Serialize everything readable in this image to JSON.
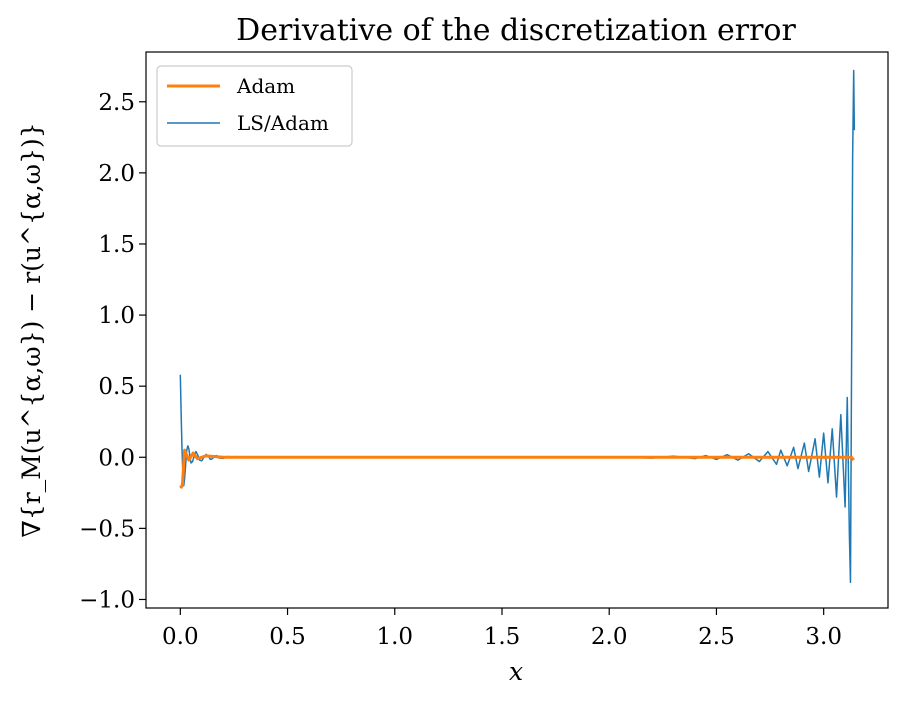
{
  "chart_data": {
    "type": "line",
    "title": "Derivative of the discretization error",
    "xlabel": "x",
    "ylabel": "∇{r_M(u^{α,ω}) − r(u^{α,ω})}",
    "xlim": [
      -0.16,
      3.3
    ],
    "ylim": [
      -1.06,
      2.85
    ],
    "xticks": [
      0.0,
      0.5,
      1.0,
      1.5,
      2.0,
      2.5,
      3.0
    ],
    "xtick_labels": [
      "0.0",
      "0.5",
      "1.0",
      "1.5",
      "2.0",
      "2.5",
      "3.0"
    ],
    "yticks": [
      -1.0,
      -0.5,
      0.0,
      0.5,
      1.0,
      1.5,
      2.0,
      2.5
    ],
    "ytick_labels": [
      "−1.0",
      "−0.5",
      "0.0",
      "0.5",
      "1.0",
      "1.5",
      "2.0",
      "2.5"
    ],
    "grid": false,
    "legend": {
      "placement": "top-left"
    },
    "series": [
      {
        "name": "Adam",
        "color": "#ff7f0e",
        "line_width": 3,
        "x": [
          0.0,
          0.005,
          0.01,
          0.02,
          0.04,
          0.06,
          0.08,
          0.12,
          0.2,
          0.5,
          1.0,
          1.5,
          2.0,
          2.5,
          2.8,
          3.0,
          3.1,
          3.13,
          3.14
        ],
        "y": [
          -0.2,
          -0.21,
          -0.19,
          0.05,
          -0.02,
          0.03,
          -0.01,
          0.01,
          0.0,
          0.0,
          0.0,
          0.0,
          0.0,
          0.0,
          0.0,
          0.0,
          0.0,
          0.0,
          -0.02
        ]
      },
      {
        "name": "LS/Adam",
        "color": "#1f77b4",
        "line_width": 1.5,
        "x": [
          0.0,
          0.004,
          0.008,
          0.012,
          0.016,
          0.02,
          0.025,
          0.03,
          0.035,
          0.04,
          0.045,
          0.05,
          0.057,
          0.065,
          0.073,
          0.08,
          0.09,
          0.1,
          0.11,
          0.12,
          0.13,
          0.14,
          0.15,
          0.16,
          0.17,
          0.18,
          0.2,
          0.22,
          0.24,
          0.26,
          0.3,
          0.4,
          0.6,
          0.8,
          1.0,
          1.2,
          1.4,
          1.6,
          1.8,
          2.0,
          2.2,
          2.3,
          2.4,
          2.45,
          2.5,
          2.55,
          2.6,
          2.65,
          2.7,
          2.74,
          2.78,
          2.8,
          2.83,
          2.86,
          2.88,
          2.91,
          2.93,
          2.96,
          2.98,
          3.0,
          3.02,
          3.04,
          3.06,
          3.08,
          3.1,
          3.11,
          3.12,
          3.125,
          3.13,
          3.135,
          3.14,
          3.143
        ],
        "y": [
          0.58,
          0.3,
          0.05,
          -0.12,
          -0.2,
          -0.15,
          -0.05,
          0.05,
          0.08,
          0.06,
          0.0,
          -0.04,
          -0.03,
          0.01,
          0.04,
          0.02,
          -0.02,
          -0.025,
          0.0,
          0.02,
          0.01,
          -0.015,
          -0.01,
          0.01,
          0.012,
          -0.005,
          -0.008,
          0.006,
          -0.005,
          0.005,
          -0.004,
          0.004,
          -0.003,
          0.003,
          -0.003,
          0.003,
          -0.003,
          0.003,
          -0.003,
          0.004,
          -0.006,
          0.008,
          -0.01,
          0.012,
          -0.015,
          0.018,
          -0.02,
          0.025,
          -0.03,
          0.04,
          -0.05,
          0.05,
          -0.06,
          0.07,
          -0.08,
          0.1,
          -0.1,
          0.13,
          -0.14,
          0.17,
          -0.18,
          0.2,
          -0.28,
          0.3,
          -0.35,
          0.42,
          -0.55,
          -0.88,
          0.6,
          2.1,
          2.72,
          2.3
        ]
      }
    ]
  }
}
